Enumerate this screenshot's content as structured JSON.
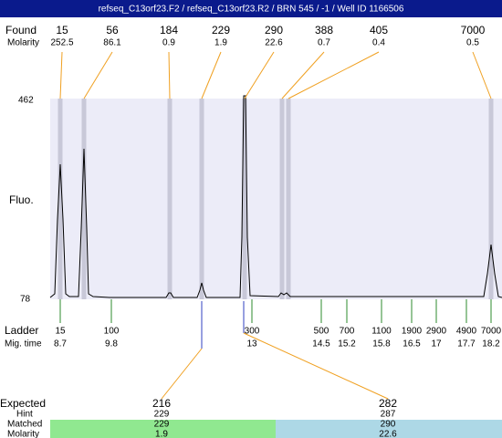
{
  "header": {
    "title": "refseq_C13orf23.F2 / refseq_C13orf23.R2 / BRN 545 / -1 / Well ID 1166506"
  },
  "found": {
    "label": "Found",
    "molarity_label": "Molarity",
    "peaks": [
      {
        "size": 15,
        "molarity": 252.5
      },
      {
        "size": 56,
        "molarity": 86.1
      },
      {
        "size": 184,
        "molarity": 0.9
      },
      {
        "size": 229,
        "molarity": 1.9
      },
      {
        "size": 290,
        "molarity": 22.6
      },
      {
        "size": 388,
        "molarity": 0.7
      },
      {
        "size": 405,
        "molarity": 0.4
      },
      {
        "size": 7000,
        "molarity": 0.5
      }
    ]
  },
  "y_axis": {
    "max": 462,
    "min": 78,
    "label": "Fluo."
  },
  "ladder": {
    "label": "Ladder",
    "mig_time_label": "Mig. time",
    "markers": [
      {
        "size": 15,
        "mig_time": 8.7
      },
      {
        "size": 100,
        "mig_time": 9.8
      },
      {
        "size": 300,
        "mig_time": 13
      },
      {
        "size": 500,
        "mig_time": 14.5
      },
      {
        "size": 700,
        "mig_time": 15.2
      },
      {
        "size": 1100,
        "mig_time": 15.8
      },
      {
        "size": 1900,
        "mig_time": 16.5
      },
      {
        "size": 2900,
        "mig_time": 17
      },
      {
        "size": 4900,
        "mig_time": 17.7
      },
      {
        "size": 7000,
        "mig_time": 18.2
      }
    ]
  },
  "expected": {
    "label": "Expected",
    "hint_label": "Hint",
    "matched_label": "Matched",
    "molarity_label": "Molarity",
    "columns": [
      {
        "expected": 216,
        "hint": 229,
        "matched": 229,
        "molarity": 1.9
      },
      {
        "expected": 282,
        "hint": 287,
        "matched": 290,
        "molarity": 22.6
      }
    ]
  }
}
